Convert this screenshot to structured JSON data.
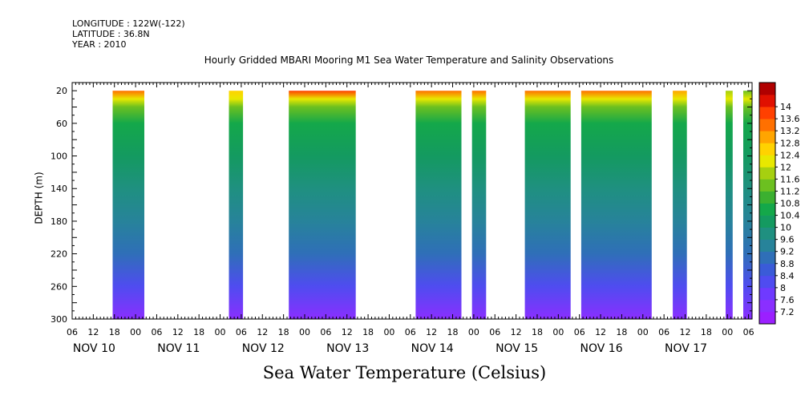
{
  "header": {
    "longitude": "LONGITUDE : 122W(-122)",
    "latitude": "LATITUDE : 36.8N",
    "year": "YEAR : 2010"
  },
  "chart_data": {
    "type": "heatmap",
    "title": "Hourly Gridded MBARI Mooring M1 Sea Water Temperature and Salinity Observations",
    "xlabel": "Sea Water Temperature (Celsius)",
    "ylabel": "DEPTH (m)",
    "x_unit": "hours since NOV 10 2010 00:00",
    "xlim": [
      6,
      199
    ],
    "ylim": [
      300,
      10
    ],
    "y_ticks": [
      20,
      60,
      100,
      140,
      180,
      220,
      260,
      300
    ],
    "x_hour_ticks": [
      "06",
      "12",
      "18",
      "00",
      "06",
      "12",
      "18",
      "00",
      "06",
      "12",
      "18",
      "00",
      "06",
      "12",
      "18",
      "00",
      "06",
      "12",
      "18",
      "00",
      "06",
      "12",
      "18",
      "00",
      "06",
      "12",
      "18",
      "00",
      "06",
      "12",
      "18",
      "00",
      "06"
    ],
    "day_labels": [
      "NOV 10",
      "NOV 11",
      "NOV 12",
      "NOV 13",
      "NOV 14",
      "NOV 15",
      "NOV 16",
      "NOV 17"
    ],
    "colorbar": {
      "levels": [
        "7.2",
        "7.6",
        "8",
        "8.4",
        "8.8",
        "9.2",
        "9.6",
        "10",
        "10.4",
        "10.8",
        "11.2",
        "11.6",
        "12",
        "12.4",
        "12.8",
        "13.2",
        "13.6",
        "14"
      ],
      "colors": [
        "#9b20ff",
        "#8a2fff",
        "#6f3aff",
        "#4f4cf0",
        "#3a5bd8",
        "#2f6fb8",
        "#27839a",
        "#1f9080",
        "#149a60",
        "#14a84a",
        "#3bb030",
        "#6cc020",
        "#a6d010",
        "#e8e800",
        "#ffd200",
        "#ffa500",
        "#ff7000",
        "#ff4000",
        "#e01000",
        "#b00000"
      ]
    },
    "segments": [
      {
        "start": 17.5,
        "end": 26.5,
        "surface_temp": 13.4
      },
      {
        "start": 50.5,
        "end": 54.5,
        "surface_temp": 12.4
      },
      {
        "start": 67.5,
        "end": 86.5,
        "surface_temp": 13.6
      },
      {
        "start": 103.5,
        "end": 116.5,
        "surface_temp": 13.3
      },
      {
        "start": 119.5,
        "end": 123.5,
        "surface_temp": 13.4
      },
      {
        "start": 134.5,
        "end": 147.5,
        "surface_temp": 13.2
      },
      {
        "start": 150.5,
        "end": 170.5,
        "surface_temp": 13.5
      },
      {
        "start": 176.5,
        "end": 180.5,
        "surface_temp": 13.1
      },
      {
        "start": 191.5,
        "end": 193.5,
        "surface_temp": 11.6
      },
      {
        "start": 196.5,
        "end": 199.0,
        "surface_temp": 11.2
      }
    ],
    "temperature_profile": [
      {
        "depth": 20,
        "temp": 13.4
      },
      {
        "depth": 30,
        "temp": 12.0
      },
      {
        "depth": 40,
        "temp": 11.2
      },
      {
        "depth": 60,
        "temp": 10.6
      },
      {
        "depth": 100,
        "temp": 10.2
      },
      {
        "depth": 140,
        "temp": 9.8
      },
      {
        "depth": 180,
        "temp": 9.3
      },
      {
        "depth": 220,
        "temp": 8.8
      },
      {
        "depth": 260,
        "temp": 8.1
      },
      {
        "depth": 300,
        "temp": 7.3
      }
    ]
  }
}
